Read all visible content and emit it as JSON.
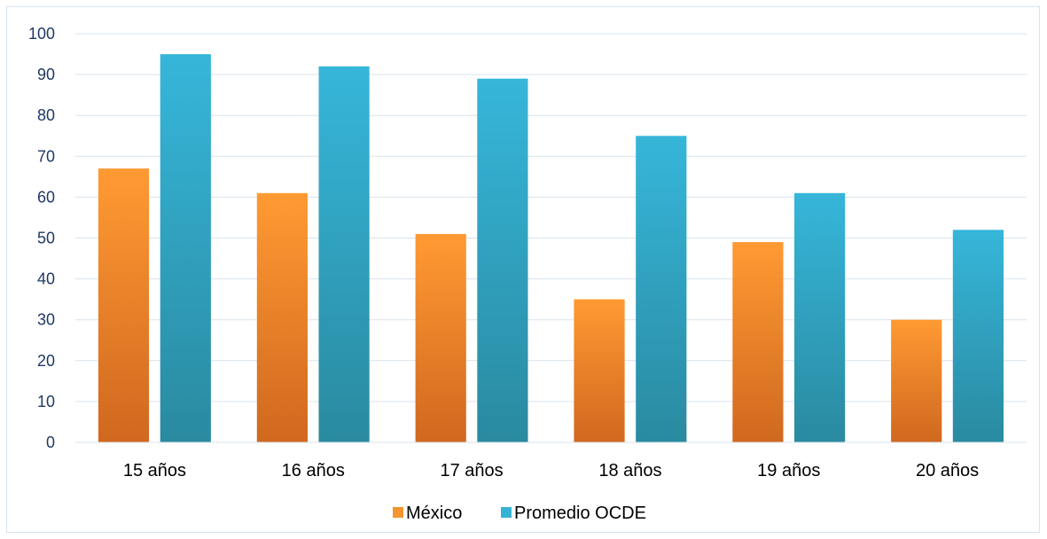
{
  "chart_data": {
    "type": "bar",
    "title": "",
    "xlabel": "",
    "ylabel": "",
    "ylim": [
      0,
      100
    ],
    "yticks": [
      0,
      10,
      20,
      30,
      40,
      50,
      60,
      70,
      80,
      90,
      100
    ],
    "grid": true,
    "legend_position": "bottom",
    "categories": [
      "15 años",
      "16 años",
      "17 años",
      "18 años",
      "19 años",
      "20 años"
    ],
    "series": [
      {
        "name": "México",
        "values": [
          67,
          61,
          51,
          35,
          49,
          30
        ],
        "color": "#f39530"
      },
      {
        "name": "Promedio OCDE",
        "values": [
          95,
          92,
          89,
          75,
          61,
          52
        ],
        "color": "#35b3d6"
      }
    ]
  }
}
